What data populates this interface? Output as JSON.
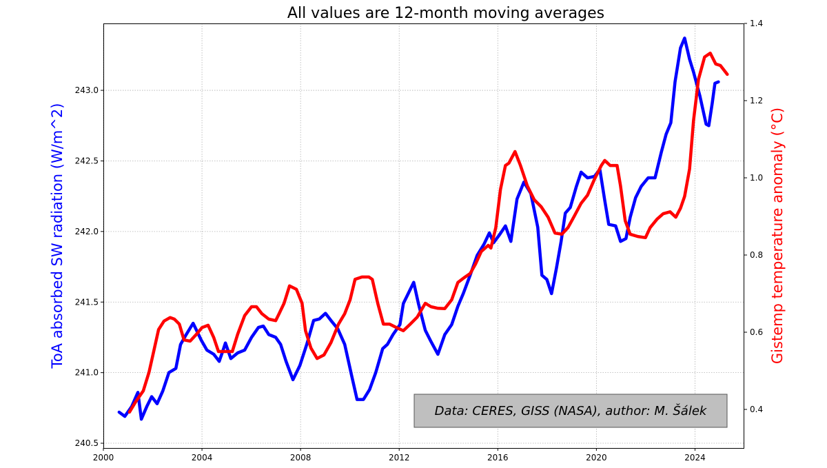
{
  "chart_data": {
    "type": "line",
    "title": "All values are 12-month moving averages",
    "xlabel": "",
    "ylabel_left": "ToA absorbed SW radiation (W/m^2)",
    "ylabel_right": "Gistemp temperature anomaly (°C)",
    "xlim": [
      2000,
      2026
    ],
    "ylim_left": [
      240.466,
      243.474
    ],
    "ylim_right": [
      0.3,
      1.4
    ],
    "x_ticks": [
      "2000",
      "2004",
      "2008",
      "2012",
      "2016",
      "2020",
      "2024"
    ],
    "y_left_ticks": [
      "240.5",
      "241.0",
      "241.5",
      "242.0",
      "242.5",
      "243.0"
    ],
    "y_right_ticks": [
      "0.4",
      "0.6",
      "0.8",
      "1.0",
      "1.2",
      "1.4"
    ],
    "grid": true,
    "annotation": "Data: CERES, GISS (NASA), author: M. Šálek",
    "series": [
      {
        "axis": "left",
        "color": "#0000ff",
        "points": [
          [
            2000.64,
            240.72
          ],
          [
            2000.87,
            240.69
          ],
          [
            2001.15,
            240.76
          ],
          [
            2001.4,
            240.86
          ],
          [
            2001.54,
            240.67
          ],
          [
            2001.76,
            240.76
          ],
          [
            2001.96,
            240.83
          ],
          [
            2002.18,
            240.78
          ],
          [
            2002.41,
            240.87
          ],
          [
            2002.66,
            241.0
          ],
          [
            2002.94,
            241.03
          ],
          [
            2003.13,
            241.2
          ],
          [
            2003.36,
            241.27
          ],
          [
            2003.64,
            241.35
          ],
          [
            2003.78,
            241.3
          ],
          [
            2003.97,
            241.23
          ],
          [
            2004.2,
            241.16
          ],
          [
            2004.48,
            241.13
          ],
          [
            2004.7,
            241.08
          ],
          [
            2004.84,
            241.15
          ],
          [
            2004.95,
            241.21
          ],
          [
            2005.17,
            241.1
          ],
          [
            2005.45,
            241.14
          ],
          [
            2005.73,
            241.16
          ],
          [
            2006.01,
            241.25
          ],
          [
            2006.29,
            241.32
          ],
          [
            2006.49,
            241.33
          ],
          [
            2006.71,
            241.27
          ],
          [
            2006.99,
            241.25
          ],
          [
            2007.19,
            241.2
          ],
          [
            2007.41,
            241.08
          ],
          [
            2007.69,
            240.95
          ],
          [
            2007.97,
            241.05
          ],
          [
            2008.25,
            241.2
          ],
          [
            2008.53,
            241.37
          ],
          [
            2008.76,
            241.38
          ],
          [
            2009.01,
            241.42
          ],
          [
            2009.23,
            241.37
          ],
          [
            2009.51,
            241.31
          ],
          [
            2009.79,
            241.2
          ],
          [
            2010.07,
            240.98
          ],
          [
            2010.29,
            240.81
          ],
          [
            2010.55,
            240.81
          ],
          [
            2010.8,
            240.88
          ],
          [
            2011.05,
            241.0
          ],
          [
            2011.33,
            241.17
          ],
          [
            2011.52,
            241.2
          ],
          [
            2011.75,
            241.27
          ],
          [
            2012.03,
            241.34
          ],
          [
            2012.17,
            241.49
          ],
          [
            2012.31,
            241.54
          ],
          [
            2012.59,
            241.64
          ],
          [
            2012.78,
            241.49
          ],
          [
            2013.06,
            241.3
          ],
          [
            2013.29,
            241.22
          ],
          [
            2013.57,
            241.13
          ],
          [
            2013.85,
            241.27
          ],
          [
            2014.13,
            241.34
          ],
          [
            2014.38,
            241.47
          ],
          [
            2014.6,
            241.56
          ],
          [
            2014.88,
            241.69
          ],
          [
            2015.16,
            241.83
          ],
          [
            2015.44,
            241.91
          ],
          [
            2015.66,
            241.99
          ],
          [
            2015.83,
            241.92
          ],
          [
            2016.08,
            241.98
          ],
          [
            2016.31,
            242.04
          ],
          [
            2016.53,
            241.93
          ],
          [
            2016.78,
            242.23
          ],
          [
            2017.06,
            242.35
          ],
          [
            2017.34,
            242.27
          ],
          [
            2017.62,
            242.03
          ],
          [
            2017.79,
            241.69
          ],
          [
            2017.99,
            241.66
          ],
          [
            2018.18,
            241.56
          ],
          [
            2018.38,
            241.74
          ],
          [
            2018.57,
            241.93
          ],
          [
            2018.74,
            242.13
          ],
          [
            2018.94,
            242.17
          ],
          [
            2019.19,
            242.32
          ],
          [
            2019.38,
            242.42
          ],
          [
            2019.64,
            242.38
          ],
          [
            2019.92,
            242.39
          ],
          [
            2020.14,
            242.44
          ],
          [
            2020.34,
            242.22
          ],
          [
            2020.5,
            242.05
          ],
          [
            2020.78,
            242.04
          ],
          [
            2020.98,
            241.93
          ],
          [
            2021.2,
            241.95
          ],
          [
            2021.37,
            242.1
          ],
          [
            2021.59,
            242.24
          ],
          [
            2021.82,
            242.32
          ],
          [
            2022.1,
            242.38
          ],
          [
            2022.38,
            242.38
          ],
          [
            2022.63,
            242.56
          ],
          [
            2022.83,
            242.69
          ],
          [
            2023.02,
            242.77
          ],
          [
            2023.19,
            243.06
          ],
          [
            2023.41,
            243.3
          ],
          [
            2023.58,
            243.37
          ],
          [
            2023.78,
            243.22
          ],
          [
            2023.94,
            243.13
          ],
          [
            2024.2,
            242.96
          ],
          [
            2024.45,
            242.76
          ],
          [
            2024.56,
            242.75
          ],
          [
            2024.7,
            242.91
          ],
          [
            2024.81,
            243.05
          ],
          [
            2024.95,
            243.06
          ]
        ]
      },
      {
        "axis": "right",
        "color": "#ff0000",
        "points": [
          [
            2001.06,
            0.393
          ],
          [
            2001.31,
            0.42
          ],
          [
            2001.62,
            0.448
          ],
          [
            2001.85,
            0.496
          ],
          [
            2002.04,
            0.55
          ],
          [
            2002.24,
            0.607
          ],
          [
            2002.46,
            0.629
          ],
          [
            2002.71,
            0.638
          ],
          [
            2002.88,
            0.634
          ],
          [
            2003.08,
            0.621
          ],
          [
            2003.27,
            0.58
          ],
          [
            2003.52,
            0.577
          ],
          [
            2003.78,
            0.595
          ],
          [
            2004.0,
            0.612
          ],
          [
            2004.25,
            0.618
          ],
          [
            2004.48,
            0.586
          ],
          [
            2004.67,
            0.55
          ],
          [
            2004.95,
            0.55
          ],
          [
            2005.23,
            0.55
          ],
          [
            2005.45,
            0.595
          ],
          [
            2005.73,
            0.643
          ],
          [
            2006.01,
            0.666
          ],
          [
            2006.21,
            0.666
          ],
          [
            2006.43,
            0.648
          ],
          [
            2006.71,
            0.634
          ],
          [
            2006.99,
            0.63
          ],
          [
            2007.13,
            0.648
          ],
          [
            2007.33,
            0.675
          ],
          [
            2007.55,
            0.72
          ],
          [
            2007.83,
            0.711
          ],
          [
            2008.06,
            0.675
          ],
          [
            2008.2,
            0.604
          ],
          [
            2008.42,
            0.559
          ],
          [
            2008.67,
            0.532
          ],
          [
            2008.95,
            0.541
          ],
          [
            2009.23,
            0.573
          ],
          [
            2009.54,
            0.621
          ],
          [
            2009.79,
            0.648
          ],
          [
            2010.01,
            0.684
          ],
          [
            2010.21,
            0.737
          ],
          [
            2010.49,
            0.743
          ],
          [
            2010.77,
            0.743
          ],
          [
            2010.91,
            0.737
          ],
          [
            2011.13,
            0.675
          ],
          [
            2011.36,
            0.621
          ],
          [
            2011.61,
            0.621
          ],
          [
            2011.89,
            0.612
          ],
          [
            2012.17,
            0.604
          ],
          [
            2012.45,
            0.621
          ],
          [
            2012.73,
            0.639
          ],
          [
            2013.06,
            0.675
          ],
          [
            2013.29,
            0.666
          ],
          [
            2013.57,
            0.662
          ],
          [
            2013.85,
            0.661
          ],
          [
            2014.13,
            0.684
          ],
          [
            2014.38,
            0.729
          ],
          [
            2014.63,
            0.741
          ],
          [
            2014.88,
            0.752
          ],
          [
            2015.1,
            0.777
          ],
          [
            2015.33,
            0.809
          ],
          [
            2015.61,
            0.825
          ],
          [
            2015.72,
            0.818
          ],
          [
            2015.92,
            0.871
          ],
          [
            2016.11,
            0.97
          ],
          [
            2016.31,
            1.032
          ],
          [
            2016.45,
            1.038
          ],
          [
            2016.7,
            1.068
          ],
          [
            2016.92,
            1.032
          ],
          [
            2017.2,
            0.979
          ],
          [
            2017.48,
            0.943
          ],
          [
            2017.76,
            0.925
          ],
          [
            2018.04,
            0.898
          ],
          [
            2018.32,
            0.857
          ],
          [
            2018.6,
            0.854
          ],
          [
            2018.85,
            0.871
          ],
          [
            2019.08,
            0.898
          ],
          [
            2019.38,
            0.934
          ],
          [
            2019.64,
            0.955
          ],
          [
            2019.92,
            0.996
          ],
          [
            2020.2,
            1.032
          ],
          [
            2020.34,
            1.045
          ],
          [
            2020.56,
            1.032
          ],
          [
            2020.84,
            1.032
          ],
          [
            2020.98,
            0.979
          ],
          [
            2021.17,
            0.889
          ],
          [
            2021.37,
            0.854
          ],
          [
            2021.68,
            0.848
          ],
          [
            2021.99,
            0.845
          ],
          [
            2022.18,
            0.871
          ],
          [
            2022.46,
            0.893
          ],
          [
            2022.71,
            0.907
          ],
          [
            2022.99,
            0.912
          ],
          [
            2023.22,
            0.898
          ],
          [
            2023.41,
            0.921
          ],
          [
            2023.58,
            0.952
          ],
          [
            2023.78,
            1.023
          ],
          [
            2023.94,
            1.148
          ],
          [
            2024.14,
            1.255
          ],
          [
            2024.39,
            1.313
          ],
          [
            2024.62,
            1.323
          ],
          [
            2024.84,
            1.295
          ],
          [
            2025.03,
            1.291
          ],
          [
            2025.31,
            1.268
          ]
        ]
      }
    ]
  }
}
